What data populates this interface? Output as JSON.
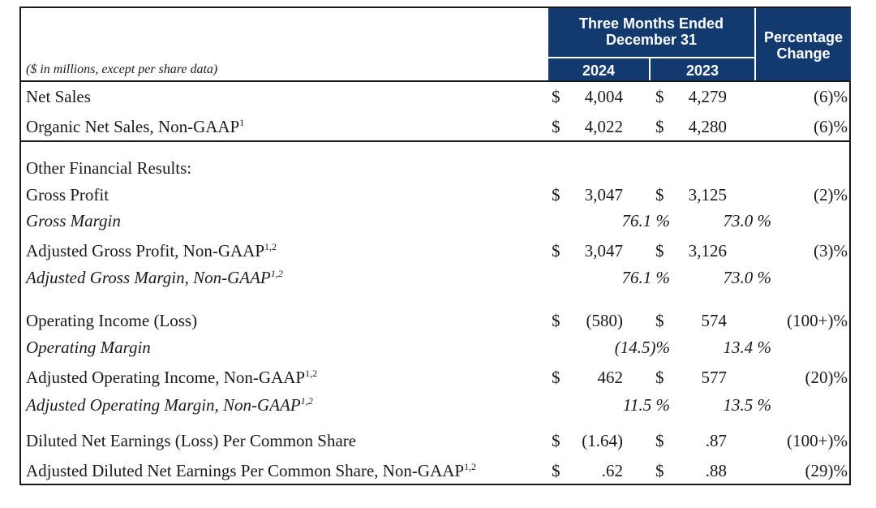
{
  "header": {
    "period_line1": "Three Months Ended",
    "period_line2": "December 31",
    "year_current": "2024",
    "year_prior": "2023",
    "pct_line1": "Percentage",
    "pct_line2": "Change",
    "note": "($ in millions, except per share data)"
  },
  "rows": [
    {
      "label": "Net Sales",
      "sup": "",
      "cur": "4,004",
      "prior": "4,279",
      "change": "(6)%"
    },
    {
      "label": "Organic Net Sales, Non-GAAP",
      "sup": "1",
      "cur": "4,022",
      "prior": "4,280",
      "change": "(6)%"
    },
    {
      "label": "Other Financial Results:"
    },
    {
      "label": "Gross Profit",
      "sup": "",
      "cur": "3,047",
      "prior": "3,125",
      "change": "(2)%"
    },
    {
      "label": "Gross Margin",
      "cur": "76.1",
      "prior": "73.0"
    },
    {
      "label": "Adjusted Gross Profit, Non-GAAP",
      "sup": "1,2",
      "cur": "3,047",
      "prior": "3,126",
      "change": "(3)%"
    },
    {
      "label": "Adjusted Gross Margin, Non-GAAP",
      "sup": "1,2",
      "cur": "76.1",
      "prior": "73.0"
    },
    {
      "label": "Operating Income (Loss)",
      "sup": "",
      "cur": "(580)",
      "prior": "574",
      "change": "(100+)%"
    },
    {
      "label": "Operating Margin",
      "cur": "(14.5)",
      "prior": "13.4"
    },
    {
      "label": "Adjusted Operating Income, Non-GAAP",
      "sup": "1,2",
      "cur": "462",
      "prior": "577",
      "change": "(20)%"
    },
    {
      "label": "Adjusted Operating Margin, Non-GAAP",
      "sup": "1,2",
      "cur": "11.5",
      "prior": "13.5"
    },
    {
      "label": "Diluted Net Earnings (Loss) Per Common Share",
      "sup": "",
      "cur": "(1.64)",
      "prior": ".87",
      "change": "(100+)%"
    },
    {
      "label": "Adjusted Diluted Net Earnings Per Common Share, Non-GAAP",
      "sup": "1,2",
      "cur": ".62",
      "prior": ".88",
      "change": "(29)%"
    }
  ],
  "symbols": {
    "dollar": "$",
    "percent": "%"
  }
}
